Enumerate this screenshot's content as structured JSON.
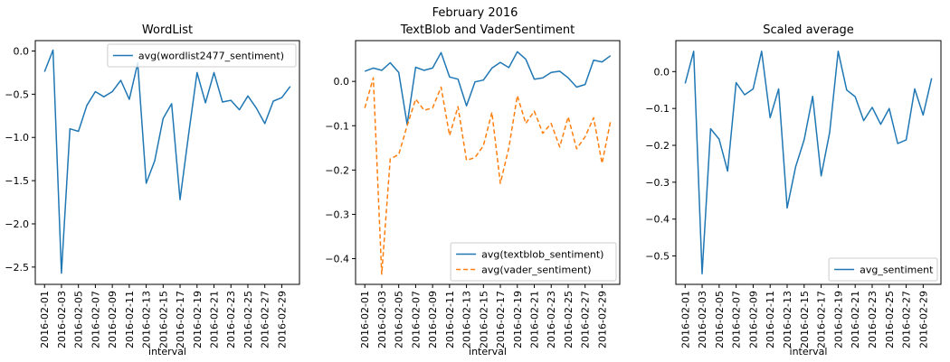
{
  "figure": {
    "suptitle": "February 2016"
  },
  "chart_data": [
    {
      "type": "line",
      "title": "WordList",
      "xlabel": "interval",
      "ylabel": "",
      "x": [
        "2016-02-01",
        "2016-02-02",
        "2016-02-03",
        "2016-02-04",
        "2016-02-05",
        "2016-02-06",
        "2016-02-07",
        "2016-02-08",
        "2016-02-09",
        "2016-02-10",
        "2016-02-11",
        "2016-02-12",
        "2016-02-13",
        "2016-02-14",
        "2016-02-15",
        "2016-02-16",
        "2016-02-17",
        "2016-02-18",
        "2016-02-19",
        "2016-02-20",
        "2016-02-21",
        "2016-02-22",
        "2016-02-23",
        "2016-02-24",
        "2016-02-25",
        "2016-02-26",
        "2016-02-27",
        "2016-02-28",
        "2016-02-29",
        "2016-03-01"
      ],
      "xticks": [
        "2016-02-01",
        "2016-02-03",
        "2016-02-05",
        "2016-02-07",
        "2016-02-09",
        "2016-02-11",
        "2016-02-13",
        "2016-02-15",
        "2016-02-17",
        "2016-02-19",
        "2016-02-21",
        "2016-02-23",
        "2016-02-25",
        "2016-02-27",
        "2016-02-29"
      ],
      "ylim": [
        -2.7,
        0.12
      ],
      "yticks": [
        0.0,
        -0.5,
        -1.0,
        -1.5,
        -2.0,
        -2.5
      ],
      "ytick_labels": [
        "0.0",
        "−0.5",
        "−1.0",
        "−1.5",
        "−2.0",
        "−2.5"
      ],
      "legend": "upper right",
      "grid": false,
      "series": [
        {
          "name": "avg(wordlist2477_sentiment)",
          "color": "#1f77b4",
          "style": "solid",
          "values": [
            -0.24,
            0.01,
            -2.57,
            -0.9,
            -0.93,
            -0.63,
            -0.47,
            -0.53,
            -0.47,
            -0.34,
            -0.56,
            -0.14,
            -1.53,
            -1.27,
            -0.78,
            -0.61,
            -1.72,
            -0.97,
            -0.25,
            -0.6,
            -0.25,
            -0.59,
            -0.57,
            -0.68,
            -0.52,
            -0.66,
            -0.84,
            -0.58,
            -0.54,
            -0.41
          ]
        }
      ]
    },
    {
      "type": "line",
      "title": "TextBlob and VaderSentiment",
      "xlabel": "interval",
      "ylabel": "",
      "x": [
        "2016-02-01",
        "2016-02-02",
        "2016-02-03",
        "2016-02-04",
        "2016-02-05",
        "2016-02-06",
        "2016-02-07",
        "2016-02-08",
        "2016-02-09",
        "2016-02-10",
        "2016-02-11",
        "2016-02-12",
        "2016-02-13",
        "2016-02-14",
        "2016-02-15",
        "2016-02-16",
        "2016-02-17",
        "2016-02-18",
        "2016-02-19",
        "2016-02-20",
        "2016-02-21",
        "2016-02-22",
        "2016-02-23",
        "2016-02-24",
        "2016-02-25",
        "2016-02-26",
        "2016-02-27",
        "2016-02-28",
        "2016-02-29",
        "2016-03-01"
      ],
      "xticks": [
        "2016-02-01",
        "2016-02-03",
        "2016-02-05",
        "2016-02-07",
        "2016-02-09",
        "2016-02-11",
        "2016-02-13",
        "2016-02-15",
        "2016-02-17",
        "2016-02-19",
        "2016-02-21",
        "2016-02-23",
        "2016-02-25",
        "2016-02-27",
        "2016-02-29"
      ],
      "ylim": [
        -0.458,
        0.092
      ],
      "yticks": [
        0.0,
        -0.1,
        -0.2,
        -0.3,
        -0.4
      ],
      "ytick_labels": [
        "0.0",
        "−0.1",
        "−0.2",
        "−0.3",
        "−0.4"
      ],
      "legend": "lower right",
      "grid": false,
      "series": [
        {
          "name": "avg(textblob_sentiment)",
          "color": "#1f77b4",
          "style": "solid",
          "values": [
            0.023,
            0.03,
            0.025,
            0.042,
            0.02,
            -0.097,
            0.032,
            0.025,
            0.03,
            0.065,
            0.01,
            0.005,
            -0.055,
            -0.001,
            0.003,
            0.03,
            0.043,
            0.031,
            0.067,
            0.05,
            0.005,
            0.008,
            0.02,
            0.023,
            0.008,
            -0.013,
            -0.007,
            0.048,
            0.044,
            0.058
          ]
        },
        {
          "name": "avg(vader_sentiment)",
          "color": "#ff7f0e",
          "style": "dashed",
          "values": [
            -0.06,
            0.008,
            -0.435,
            -0.175,
            -0.165,
            -0.1,
            -0.04,
            -0.065,
            -0.06,
            -0.013,
            -0.122,
            -0.057,
            -0.178,
            -0.172,
            -0.145,
            -0.07,
            -0.23,
            -0.15,
            -0.032,
            -0.095,
            -0.067,
            -0.117,
            -0.095,
            -0.148,
            -0.08,
            -0.152,
            -0.125,
            -0.082,
            -0.185,
            -0.09
          ]
        }
      ]
    },
    {
      "type": "line",
      "title": "Scaled average",
      "xlabel": "interval",
      "ylabel": "",
      "x": [
        "2016-02-01",
        "2016-02-02",
        "2016-02-03",
        "2016-02-04",
        "2016-02-05",
        "2016-02-06",
        "2016-02-07",
        "2016-02-08",
        "2016-02-09",
        "2016-02-10",
        "2016-02-11",
        "2016-02-12",
        "2016-02-13",
        "2016-02-14",
        "2016-02-15",
        "2016-02-16",
        "2016-02-17",
        "2016-02-18",
        "2016-02-19",
        "2016-02-20",
        "2016-02-21",
        "2016-02-22",
        "2016-02-23",
        "2016-02-24",
        "2016-02-25",
        "2016-02-26",
        "2016-02-27",
        "2016-02-28",
        "2016-02-29",
        "2016-03-01"
      ],
      "xticks": [
        "2016-02-01",
        "2016-02-03",
        "2016-02-05",
        "2016-02-07",
        "2016-02-09",
        "2016-02-11",
        "2016-02-13",
        "2016-02-15",
        "2016-02-17",
        "2016-02-19",
        "2016-02-21",
        "2016-02-23",
        "2016-02-25",
        "2016-02-27",
        "2016-02-29"
      ],
      "ylim": [
        -0.577,
        0.084
      ],
      "yticks": [
        0.0,
        -0.1,
        -0.2,
        -0.3,
        -0.4,
        -0.5
      ],
      "ytick_labels": [
        "0.0",
        "−0.1",
        "−0.2",
        "−0.3",
        "−0.4",
        "−0.5"
      ],
      "legend": "lower right",
      "grid": false,
      "series": [
        {
          "name": "avg_sentiment",
          "color": "#1f77b4",
          "style": "solid",
          "values": [
            -0.032,
            0.055,
            -0.548,
            -0.155,
            -0.183,
            -0.27,
            -0.03,
            -0.063,
            -0.047,
            0.055,
            -0.125,
            -0.047,
            -0.37,
            -0.258,
            -0.185,
            -0.067,
            -0.283,
            -0.165,
            0.055,
            -0.05,
            -0.068,
            -0.133,
            -0.097,
            -0.143,
            -0.1,
            -0.195,
            -0.185,
            -0.047,
            -0.118,
            -0.018
          ]
        }
      ]
    }
  ]
}
